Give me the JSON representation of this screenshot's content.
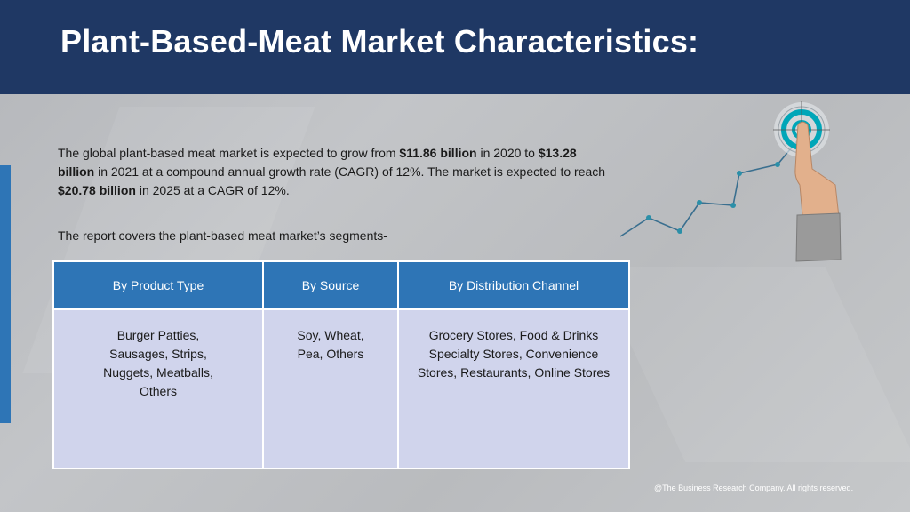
{
  "header": {
    "title": "Plant-Based-Meat Market Characteristics:"
  },
  "intro": {
    "part1": "The global plant-based meat market is expected to grow from ",
    "value_2020": "$11.86 billion",
    "part2": " in 2020 to ",
    "value_2021": "$13.28 billion",
    "part3": " in 2021 at a compound annual growth rate (CAGR) of 12%. The market is expected to reach ",
    "value_2025": "$20.78 billion",
    "part4": " in 2025 at a CAGR of 12%."
  },
  "segments_intro": "The report covers the plant-based meat market’s segments-",
  "segments_table": {
    "headers": [
      "By Product Type",
      "By Source",
      "By Distribution Channel"
    ],
    "cells": [
      "Burger Patties, Sausages, Strips, Nuggets, Meatballs, Others",
      "Soy, Wheat, Pea, Others",
      "Grocery Stores, Food & Drinks Specialty Stores, Convenience Stores, Restaurants, Online Stores"
    ]
  },
  "graphic": {
    "icon": "growth-chart-target-hand-icon",
    "line_color": "#3a6f8f",
    "target_color": "#00a6b8"
  },
  "footer": {
    "copyright": "@The Business Research Company. All rights reserved."
  }
}
